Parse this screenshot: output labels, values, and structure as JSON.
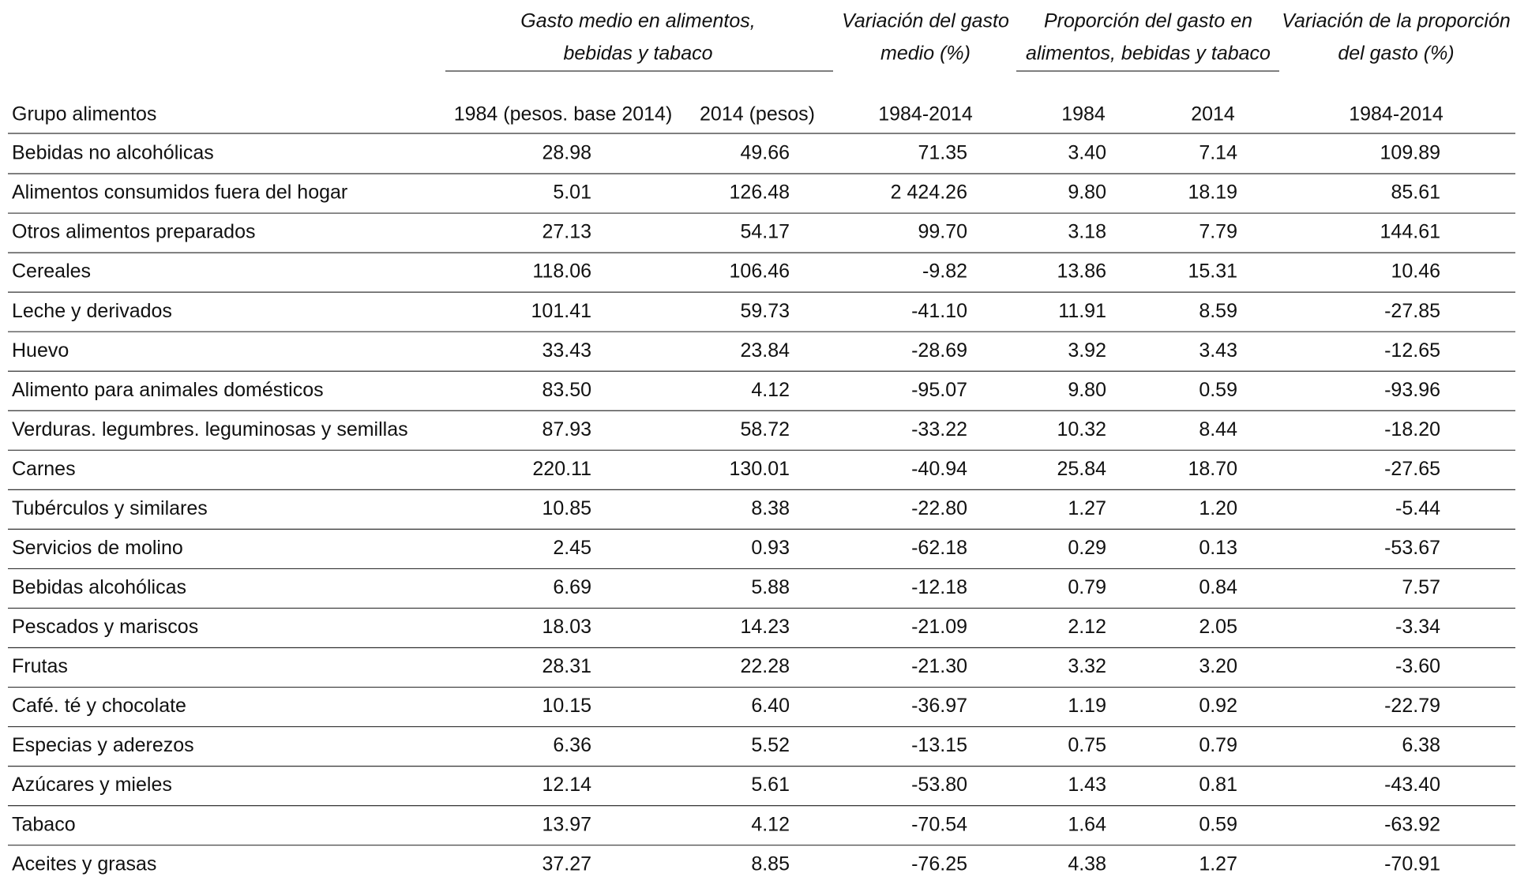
{
  "header_groups": [
    {
      "lines": [
        "Gasto medio en alimentos,",
        "bebidas y tabaco"
      ]
    },
    {
      "lines": [
        "Variación del gasto",
        "medio (%)"
      ]
    },
    {
      "lines": [
        "Proporción del gasto en",
        "alimentos, bebidas y tabaco"
      ]
    },
    {
      "lines": [
        "Variación de la proporción",
        "del gasto (%)"
      ]
    }
  ],
  "table": {
    "columns": [
      "Grupo alimentos",
      "1984 (pesos. base 2014)",
      "2014 (pesos)",
      "1984-2014",
      "1984",
      "2014",
      "1984-2014"
    ],
    "rows": [
      [
        "Bebidas no alcohólicas",
        "28.98",
        "49.66",
        "71.35",
        "3.40",
        "7.14",
        "109.89"
      ],
      [
        "Alimentos consumidos fuera del hogar",
        "5.01",
        "126.48",
        "2 424.26",
        "9.80",
        "18.19",
        "85.61"
      ],
      [
        "Otros alimentos preparados",
        "27.13",
        "54.17",
        "99.70",
        "3.18",
        "7.79",
        "144.61"
      ],
      [
        "Cereales",
        "118.06",
        "106.46",
        "-9.82",
        "13.86",
        "15.31",
        "10.46"
      ],
      [
        "Leche y derivados",
        "101.41",
        "59.73",
        "-41.10",
        "11.91",
        "8.59",
        "-27.85"
      ],
      [
        "Huevo",
        "33.43",
        "23.84",
        "-28.69",
        "3.92",
        "3.43",
        "-12.65"
      ],
      [
        "Alimento para animales domésticos",
        "83.50",
        "4.12",
        "-95.07",
        "9.80",
        "0.59",
        "-93.96"
      ],
      [
        "Verduras. legumbres. leguminosas y semillas",
        "87.93",
        "58.72",
        "-33.22",
        "10.32",
        "8.44",
        "-18.20"
      ],
      [
        "Carnes",
        "220.11",
        "130.01",
        "-40.94",
        "25.84",
        "18.70",
        "-27.65"
      ],
      [
        "Tubérculos y similares",
        "10.85",
        "8.38",
        "-22.80",
        "1.27",
        "1.20",
        "-5.44"
      ],
      [
        "Servicios de molino",
        "2.45",
        "0.93",
        "-62.18",
        "0.29",
        "0.13",
        "-53.67"
      ],
      [
        "Bebidas alcohólicas",
        "6.69",
        "5.88",
        "-12.18",
        "0.79",
        "0.84",
        "7.57"
      ],
      [
        "Pescados y mariscos",
        "18.03",
        "14.23",
        "-21.09",
        "2.12",
        "2.05",
        "-3.34"
      ],
      [
        "Frutas",
        "28.31",
        "22.28",
        "-21.30",
        "3.32",
        "3.20",
        "-3.60"
      ],
      [
        "Café. té y chocolate",
        "10.15",
        "6.40",
        "-36.97",
        "1.19",
        "0.92",
        "-22.79"
      ],
      [
        "Especias y aderezos",
        "6.36",
        "5.52",
        "-13.15",
        "0.75",
        "0.79",
        "6.38"
      ],
      [
        "Azúcares y mieles",
        "12.14",
        "5.61",
        "-53.80",
        "1.43",
        "0.81",
        "-43.40"
      ],
      [
        "Tabaco",
        "13.97",
        "4.12",
        "-70.54",
        "1.64",
        "0.59",
        "-63.92"
      ],
      [
        "Aceites y grasas",
        "37.27",
        "8.85",
        "-76.25",
        "4.38",
        "1.27",
        "-70.91"
      ]
    ]
  }
}
